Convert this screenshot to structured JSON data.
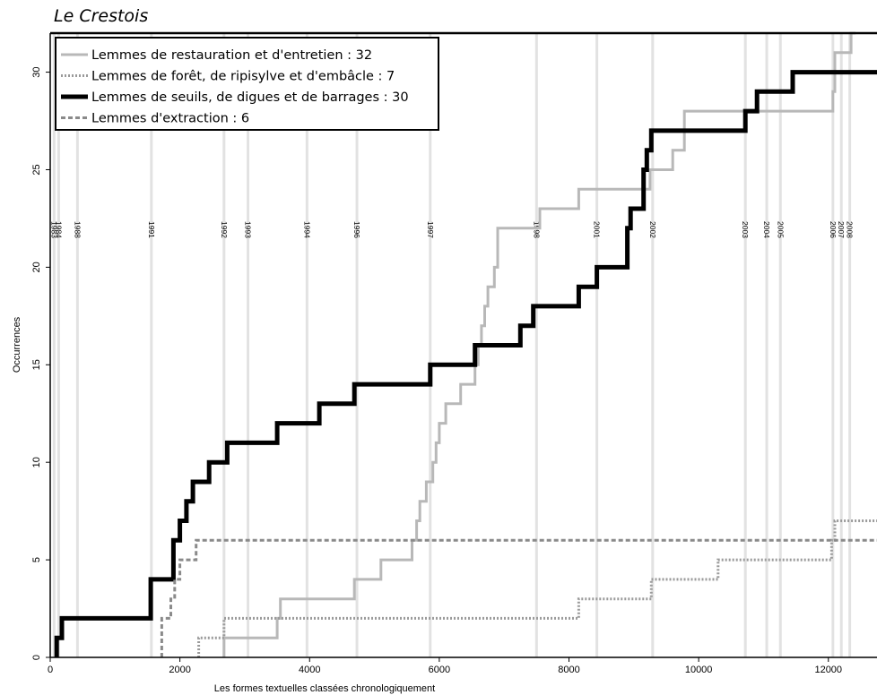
{
  "title": "Le Crestois",
  "chart_data": {
    "type": "line",
    "step": true,
    "xlabel": "Les formes textuelles classées chronologiquement",
    "ylabel": "Occurrences",
    "xlim": [
      0,
      12750
    ],
    "ylim": [
      0,
      32
    ],
    "xticks": [
      0,
      2000,
      4000,
      6000,
      8000,
      10000,
      12000
    ],
    "yticks": [
      0,
      5,
      10,
      15,
      20,
      25,
      30
    ],
    "grid": false,
    "legend_position": "top-left",
    "year_markers": [
      {
        "x": 60,
        "label": "1983"
      },
      {
        "x": 130,
        "label": "1984"
      },
      {
        "x": 420,
        "label": "1988"
      },
      {
        "x": 1560,
        "label": "1991"
      },
      {
        "x": 2680,
        "label": "1992"
      },
      {
        "x": 3050,
        "label": "1993"
      },
      {
        "x": 3960,
        "label": "1994"
      },
      {
        "x": 4730,
        "label": "1996"
      },
      {
        "x": 5860,
        "label": "1997"
      },
      {
        "x": 7500,
        "label": "1998"
      },
      {
        "x": 8430,
        "label": "2001"
      },
      {
        "x": 9290,
        "label": "2002"
      },
      {
        "x": 10720,
        "label": "2003"
      },
      {
        "x": 11050,
        "label": "2004"
      },
      {
        "x": 11260,
        "label": "2005"
      },
      {
        "x": 12070,
        "label": "2006"
      },
      {
        "x": 12200,
        "label": "2007"
      },
      {
        "x": 12330,
        "label": "2008"
      }
    ],
    "series": [
      {
        "name": "Lemmes de restauration et d'entretien : 32",
        "color": "#b8b8b8",
        "style": "solid",
        "width": 3,
        "points": [
          [
            2680,
            0
          ],
          [
            2680,
            1
          ],
          [
            3500,
            1
          ],
          [
            3500,
            2
          ],
          [
            3550,
            2
          ],
          [
            3550,
            3
          ],
          [
            4690,
            3
          ],
          [
            4690,
            4
          ],
          [
            5100,
            4
          ],
          [
            5100,
            5
          ],
          [
            5580,
            5
          ],
          [
            5580,
            6
          ],
          [
            5650,
            6
          ],
          [
            5650,
            7
          ],
          [
            5700,
            7
          ],
          [
            5700,
            8
          ],
          [
            5800,
            8
          ],
          [
            5800,
            9
          ],
          [
            5900,
            9
          ],
          [
            5900,
            10
          ],
          [
            5950,
            10
          ],
          [
            5950,
            11
          ],
          [
            6000,
            11
          ],
          [
            6000,
            12
          ],
          [
            6100,
            12
          ],
          [
            6100,
            13
          ],
          [
            6330,
            13
          ],
          [
            6330,
            14
          ],
          [
            6550,
            14
          ],
          [
            6550,
            15
          ],
          [
            6600,
            15
          ],
          [
            6600,
            16
          ],
          [
            6650,
            16
          ],
          [
            6650,
            17
          ],
          [
            6700,
            17
          ],
          [
            6700,
            18
          ],
          [
            6750,
            18
          ],
          [
            6750,
            19
          ],
          [
            6850,
            19
          ],
          [
            6850,
            20
          ],
          [
            6900,
            20
          ],
          [
            6900,
            22
          ],
          [
            7550,
            22
          ],
          [
            7550,
            23
          ],
          [
            8150,
            23
          ],
          [
            8150,
            24
          ],
          [
            9250,
            24
          ],
          [
            9250,
            25
          ],
          [
            9600,
            25
          ],
          [
            9600,
            26
          ],
          [
            9780,
            26
          ],
          [
            9780,
            28
          ],
          [
            12070,
            28
          ],
          [
            12070,
            29
          ],
          [
            12100,
            29
          ],
          [
            12100,
            31
          ],
          [
            12350,
            31
          ],
          [
            12350,
            32
          ],
          [
            12420,
            32
          ]
        ]
      },
      {
        "name": "Lemmes de forêt, de ripisylve et d'embâcle : 7",
        "color": "#9a9a9a",
        "style": "dotted",
        "width": 3,
        "points": [
          [
            2290,
            0
          ],
          [
            2290,
            1
          ],
          [
            2680,
            1
          ],
          [
            2680,
            2
          ],
          [
            8150,
            2
          ],
          [
            8150,
            3
          ],
          [
            9270,
            3
          ],
          [
            9270,
            4
          ],
          [
            10300,
            4
          ],
          [
            10300,
            5
          ],
          [
            12050,
            5
          ],
          [
            12050,
            6
          ],
          [
            12100,
            6
          ],
          [
            12100,
            7
          ],
          [
            12750,
            7
          ]
        ]
      },
      {
        "name": "Lemmes de seuils, de digues et de barrages : 30",
        "color": "#000000",
        "style": "solid",
        "width": 5,
        "points": [
          [
            100,
            0
          ],
          [
            100,
            1
          ],
          [
            180,
            1
          ],
          [
            180,
            2
          ],
          [
            1550,
            2
          ],
          [
            1550,
            4
          ],
          [
            1900,
            4
          ],
          [
            1900,
            6
          ],
          [
            2000,
            6
          ],
          [
            2000,
            7
          ],
          [
            2100,
            7
          ],
          [
            2100,
            8
          ],
          [
            2200,
            8
          ],
          [
            2200,
            9
          ],
          [
            2450,
            9
          ],
          [
            2450,
            10
          ],
          [
            2730,
            10
          ],
          [
            2730,
            11
          ],
          [
            3500,
            11
          ],
          [
            3500,
            12
          ],
          [
            4150,
            12
          ],
          [
            4150,
            13
          ],
          [
            4690,
            13
          ],
          [
            4690,
            14
          ],
          [
            5860,
            14
          ],
          [
            5860,
            15
          ],
          [
            6550,
            15
          ],
          [
            6550,
            16
          ],
          [
            7250,
            16
          ],
          [
            7250,
            17
          ],
          [
            7450,
            17
          ],
          [
            7450,
            18
          ],
          [
            8150,
            18
          ],
          [
            8150,
            19
          ],
          [
            8430,
            19
          ],
          [
            8430,
            20
          ],
          [
            8900,
            20
          ],
          [
            8900,
            22
          ],
          [
            8950,
            22
          ],
          [
            8950,
            23
          ],
          [
            9150,
            23
          ],
          [
            9150,
            25
          ],
          [
            9200,
            25
          ],
          [
            9200,
            26
          ],
          [
            9270,
            26
          ],
          [
            9270,
            27
          ],
          [
            10720,
            27
          ],
          [
            10720,
            28
          ],
          [
            10900,
            28
          ],
          [
            10900,
            29
          ],
          [
            11450,
            29
          ],
          [
            11450,
            30
          ],
          [
            12750,
            30
          ]
        ]
      },
      {
        "name": "Lemmes d'extraction : 6",
        "color": "#8a8a8a",
        "style": "dashed",
        "width": 3,
        "points": [
          [
            1720,
            0
          ],
          [
            1720,
            2
          ],
          [
            1860,
            2
          ],
          [
            1860,
            3
          ],
          [
            1920,
            3
          ],
          [
            1920,
            4
          ],
          [
            2000,
            4
          ],
          [
            2000,
            5
          ],
          [
            2250,
            5
          ],
          [
            2250,
            6
          ],
          [
            12750,
            6
          ]
        ]
      }
    ]
  }
}
